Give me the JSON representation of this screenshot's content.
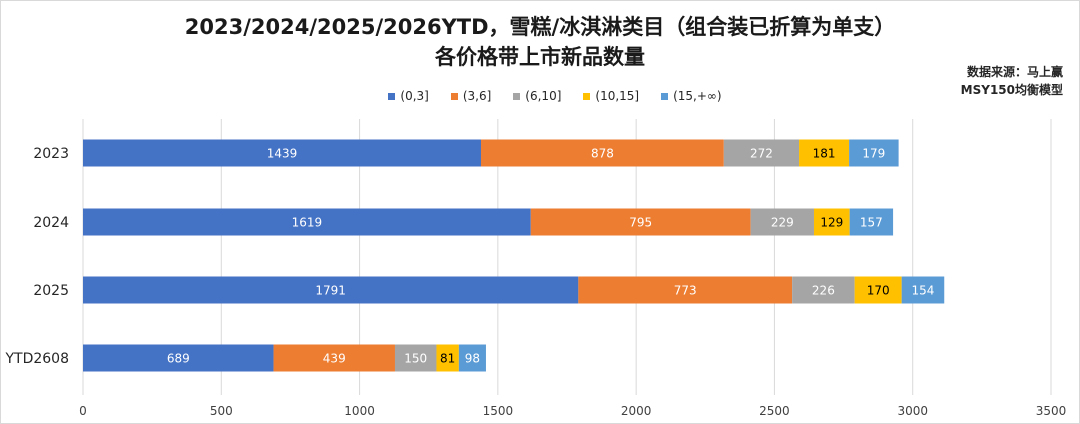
{
  "title_line1": "2023/2024/2025/2026YTD，雪糕/冰淇淋类目（组合装已折算为单支）",
  "title_line2": "各价格带上市新品数量",
  "source": "数据来源：马上赢",
  "model": "MSY150均衡模型",
  "chart_data": {
    "type": "bar",
    "orientation": "horizontal",
    "stacked": true,
    "categories": [
      "2023",
      "2024",
      "2025",
      "YTD2608"
    ],
    "series": [
      {
        "name": "(0,3]",
        "color": "#4472c4",
        "values": [
          1439,
          1619,
          1791,
          689
        ]
      },
      {
        "name": "(3,6]",
        "color": "#ed7d31",
        "values": [
          878,
          795,
          773,
          439
        ]
      },
      {
        "name": "(6,10]",
        "color": "#a5a5a5",
        "values": [
          272,
          229,
          226,
          150
        ]
      },
      {
        "name": "(10,15]",
        "color": "#ffc000",
        "values": [
          181,
          129,
          170,
          81
        ]
      },
      {
        "name": "(15,+∞)",
        "color": "#5b9bd5",
        "values": [
          179,
          157,
          154,
          98
        ]
      }
    ],
    "xlim": [
      0,
      3500
    ],
    "xticks": [
      0,
      500,
      1000,
      1500,
      2000,
      2500,
      3000,
      3500
    ],
    "grid": true,
    "legend_position": "top"
  }
}
